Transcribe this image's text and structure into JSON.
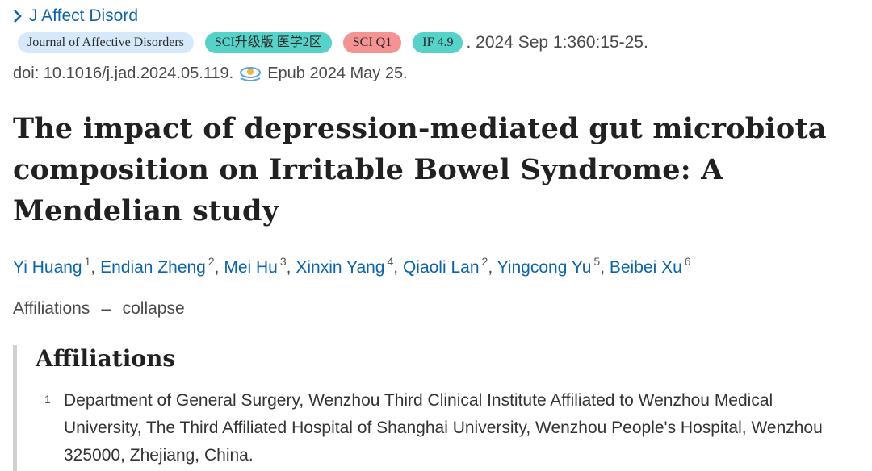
{
  "journal": {
    "abbrev": "J Affect Disord",
    "icon": "chevron-right-icon"
  },
  "badges": [
    {
      "label": "Journal of Affective Disorders",
      "color": "#d6e9fb"
    },
    {
      "label": "SCI升级版 医学2区",
      "color": "#55d3c9"
    },
    {
      "label": "SCI Q1",
      "color": "#f59292"
    },
    {
      "label": "IF 4.9",
      "color": "#55d3c9"
    }
  ],
  "citation": ". 2024 Sep 1:360:15-25.",
  "doi": {
    "text": "doi: 10.1016/j.jad.2024.05.119.",
    "epub": "Epub 2024 May 25.",
    "icon": "eye-icon"
  },
  "title": "The impact of depression-mediated gut microbiota composition on Irritable Bowel Syndrome: A Mendelian study",
  "authors": [
    {
      "name": "Yi Huang",
      "sup": "1"
    },
    {
      "name": "Endian Zheng",
      "sup": "2"
    },
    {
      "name": "Mei Hu",
      "sup": "3"
    },
    {
      "name": "Xinxin Yang",
      "sup": "4"
    },
    {
      "name": "Qiaoli Lan",
      "sup": "2"
    },
    {
      "name": "Yingcong Yu",
      "sup": "5"
    },
    {
      "name": "Beibei Xu",
      "sup": "6"
    }
  ],
  "affiliations_toggle": {
    "label": "Affiliations",
    "dash": "–",
    "action": "collapse"
  },
  "affiliations": {
    "heading": "Affiliations",
    "items": [
      {
        "num": "1",
        "text": "Department of General Surgery, Wenzhou Third Clinical Institute Affiliated to Wenzhou Medical University, The Third Affiliated Hospital of Shanghai University, Wenzhou People's Hospital, Wenzhou 325000, Zhejiang, China."
      }
    ]
  }
}
